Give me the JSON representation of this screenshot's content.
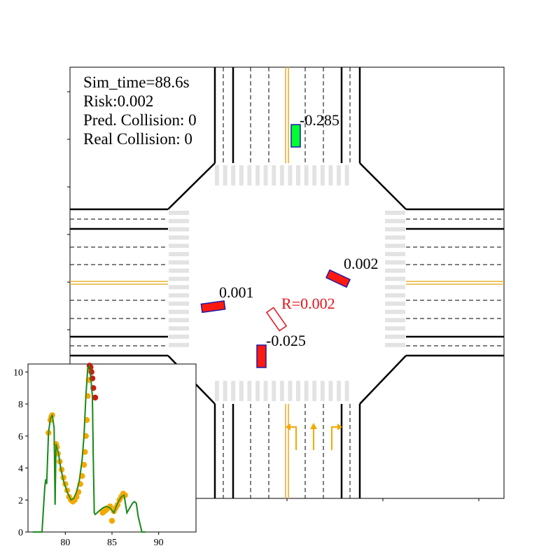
{
  "info": {
    "sim_time": "Sim_time=88.6s",
    "risk": "Risk:0.002",
    "pred_collision": "Pred. Collision: 0",
    "real_collision": "Real Collision: 0"
  },
  "vehicles": [
    {
      "id": "north",
      "label": "-0.285",
      "color": "#00ff33"
    },
    {
      "id": "east",
      "label": "0.002",
      "color": "#ff1a10"
    },
    {
      "id": "west",
      "label": "0.001",
      "color": "#ff1a10"
    },
    {
      "id": "south",
      "label": "-0.025",
      "color": "#ff1a10"
    }
  ],
  "ego": {
    "label": "R=0.002",
    "color": "#e8101a"
  },
  "colors": {
    "lane_yellow": "#e8b030",
    "arrow": "#f5a800",
    "crosswalk": "#e3e3e3",
    "vehicle_edge": "#1a1aaa"
  },
  "icons": [
    "left-turn-arrow-icon",
    "straight-arrow-icon",
    "right-turn-arrow-icon"
  ],
  "chart_data": {
    "type": "line",
    "x_ticks": [
      "80",
      "85",
      "90"
    ],
    "y_ticks": [
      "0",
      "2",
      "4",
      "6",
      "8",
      "10"
    ],
    "xlim": [
      76,
      94
    ],
    "ylim": [
      0,
      10.5
    ],
    "line_color": "#1a8a1a",
    "series": [
      {
        "type": "line",
        "x": [
          76.5,
          77.5,
          77.8,
          77.9,
          78.0,
          78.2,
          78.4,
          78.6,
          78.8,
          78.9,
          79.0,
          79.1,
          79.3,
          79.5,
          79.8,
          80.2,
          80.6,
          80.9,
          81.2,
          81.5,
          81.8,
          82.0,
          82.2,
          82.4,
          82.6,
          82.7,
          82.9,
          83.0,
          83.1,
          83.2,
          83.4,
          83.6,
          84.0,
          84.4,
          84.8,
          85.2,
          85.6,
          86.0,
          86.3,
          86.6,
          86.9,
          87.2,
          87.4,
          87.6,
          87.8,
          88.2,
          88.6
        ],
        "y": [
          0,
          0,
          2.8,
          3.3,
          3.0,
          6.2,
          7.1,
          7.3,
          6.5,
          1.7,
          5.5,
          5.3,
          4.8,
          4.0,
          3.2,
          2.5,
          2.0,
          2.1,
          2.5,
          3.2,
          4.5,
          6.0,
          8.5,
          10.2,
          10.4,
          9.8,
          8.5,
          4.5,
          1.2,
          1.1,
          1.2,
          1.3,
          1.5,
          1.6,
          1.5,
          1.2,
          1.8,
          2.2,
          2.3,
          1.2,
          1.5,
          1.8,
          1.9,
          1.8,
          1.0,
          0,
          0
        ]
      },
      {
        "type": "scatter",
        "color": "#f5a800",
        "x": [
          78.2,
          78.4,
          78.5,
          78.6,
          79.0,
          79.1,
          79.2,
          79.4,
          79.6,
          79.8,
          80.0,
          80.2,
          80.4,
          80.6,
          80.8,
          81.0,
          81.2,
          81.4,
          81.6,
          81.8,
          82.0,
          82.1,
          82.2,
          82.3,
          82.4,
          82.5,
          82.6,
          84.0,
          84.2,
          84.4,
          84.6,
          84.8,
          85.0,
          85.2,
          85.4,
          85.6,
          85.8,
          86.0,
          86.2,
          86.4
        ],
        "y": [
          6.2,
          7.0,
          7.2,
          7.3,
          5.5,
          5.3,
          4.9,
          4.4,
          3.9,
          3.4,
          3.0,
          2.6,
          2.2,
          2.0,
          1.9,
          2.0,
          2.2,
          2.5,
          3.0,
          3.5,
          4.2,
          5.0,
          6.0,
          7.0,
          8.5,
          9.5,
          10.2,
          1.2,
          1.3,
          1.4,
          1.5,
          1.6,
          0.7,
          1.3,
          1.5,
          1.7,
          2.0,
          2.2,
          2.4,
          2.3
        ]
      },
      {
        "type": "scatter",
        "color": "#cc1a10",
        "x": [
          82.6,
          82.7,
          82.8,
          82.9,
          83.0
        ],
        "y": [
          10.4,
          10.3,
          10.0,
          9.6,
          9.0
        ]
      },
      {
        "type": "scatter",
        "color": "#cc1a10",
        "x": [
          83.2
        ],
        "y": [
          8.4
        ]
      }
    ]
  }
}
